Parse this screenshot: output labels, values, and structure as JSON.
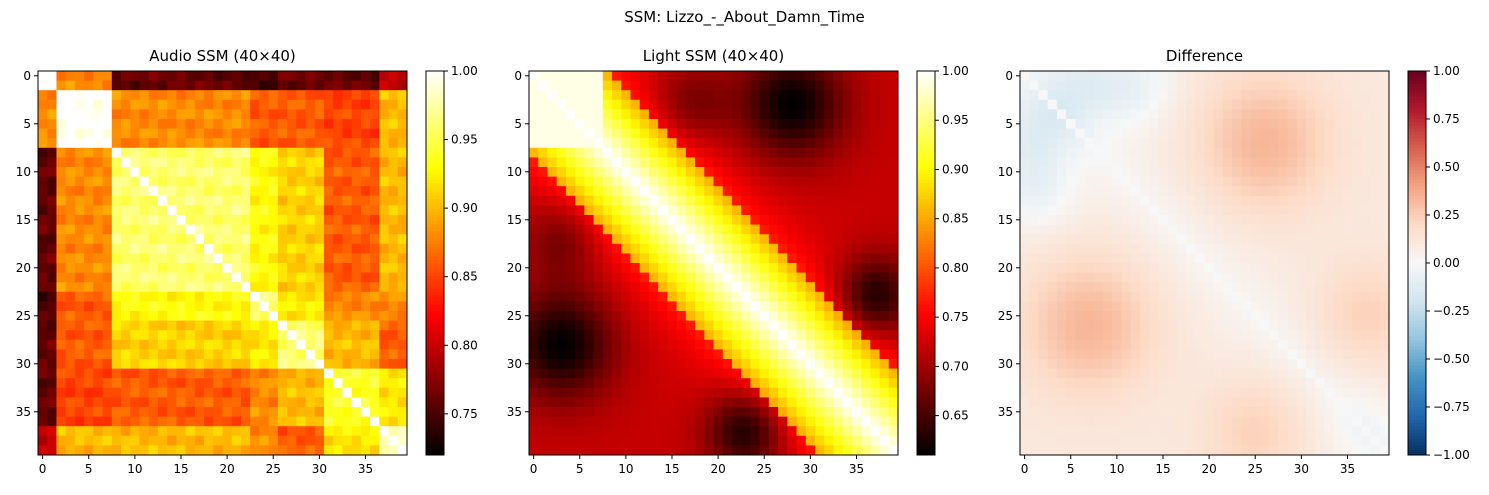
{
  "figure": {
    "suptitle": "SSM: Lizzo_-_About_Damn_Time"
  },
  "chart_data": [
    {
      "type": "heatmap",
      "title": "Audio SSM (40×40)",
      "size": 40,
      "colormap": "hot",
      "xticks": [
        0,
        5,
        10,
        15,
        20,
        25,
        30,
        35
      ],
      "yticks": [
        0,
        5,
        10,
        15,
        20,
        25,
        30,
        35
      ],
      "colorbar": {
        "range": [
          0.72,
          1.0
        ],
        "ticks": [
          0.75,
          0.8,
          0.85,
          0.9,
          0.95,
          1.0
        ],
        "tick_labels": [
          "0.75",
          "0.80",
          "0.85",
          "0.90",
          "0.95",
          "1.00"
        ]
      },
      "block_boundaries": [
        0,
        2,
        8,
        23,
        26,
        31,
        37,
        40
      ],
      "block_values": [
        [
          1.0,
          0.88,
          0.76,
          0.75,
          0.76,
          0.76,
          0.8
        ],
        [
          0.88,
          1.0,
          0.88,
          0.86,
          0.86,
          0.85,
          0.9
        ],
        [
          0.76,
          0.88,
          0.96,
          0.93,
          0.91,
          0.86,
          0.9
        ],
        [
          0.75,
          0.86,
          0.93,
          0.96,
          0.92,
          0.88,
          0.88
        ],
        [
          0.76,
          0.86,
          0.91,
          0.92,
          0.96,
          0.9,
          0.86
        ],
        [
          0.76,
          0.85,
          0.86,
          0.88,
          0.9,
          0.94,
          0.92
        ],
        [
          0.8,
          0.9,
          0.9,
          0.88,
          0.86,
          0.92,
          0.98
        ]
      ]
    },
    {
      "type": "heatmap",
      "title": "Light SSM (40×40)",
      "size": 40,
      "colormap": "hot",
      "xticks": [
        0,
        5,
        10,
        15,
        20,
        25,
        30,
        35
      ],
      "yticks": [
        0,
        5,
        10,
        15,
        20,
        25,
        30,
        35
      ],
      "colorbar": {
        "range": [
          0.61,
          1.0
        ],
        "ticks": [
          0.65,
          0.7,
          0.75,
          0.8,
          0.85,
          0.9,
          0.95,
          1.0
        ],
        "tick_labels": [
          "0.65",
          "0.70",
          "0.75",
          "0.80",
          "0.85",
          "0.90",
          "0.95",
          "1.00"
        ]
      },
      "band_diagonal": {
        "width": 8,
        "edge": 0.86
      },
      "anchors": [
        {
          "x": 28,
          "y": 3,
          "value": 0.61,
          "spread": 4
        },
        {
          "x": 3,
          "y": 28,
          "value": 0.61,
          "spread": 4
        },
        {
          "x": 23,
          "y": 37,
          "value": 0.62,
          "spread": 3
        },
        {
          "x": 37,
          "y": 23,
          "value": 0.62,
          "spread": 3
        },
        {
          "x": 17,
          "y": 3,
          "value": 0.67,
          "spread": 3
        },
        {
          "x": 3,
          "y": 17,
          "value": 0.67,
          "spread": 3
        }
      ],
      "base_offdiag": 0.72
    },
    {
      "type": "heatmap",
      "title": "Difference",
      "size": 40,
      "colormap": "RdBu_r",
      "xticks": [
        0,
        5,
        10,
        15,
        20,
        25,
        30,
        35
      ],
      "yticks": [
        0,
        5,
        10,
        15,
        20,
        25,
        30,
        35
      ],
      "colorbar": {
        "range": [
          -1.0,
          1.0
        ],
        "ticks": [
          -1.0,
          -0.75,
          -0.5,
          -0.25,
          0.0,
          0.25,
          0.5,
          0.75,
          1.0
        ],
        "tick_labels": [
          "−1.00",
          "−0.75",
          "−0.50",
          "−0.25",
          "0.00",
          "0.25",
          "0.50",
          "0.75",
          "1.00"
        ]
      },
      "anchors": [
        {
          "x": 26,
          "y": 7,
          "value": 0.24,
          "spread": 5
        },
        {
          "x": 7,
          "y": 26,
          "value": 0.24,
          "spread": 5
        },
        {
          "x": 12,
          "y": 1,
          "value": -0.15,
          "spread": 3
        },
        {
          "x": 1,
          "y": 12,
          "value": -0.15,
          "spread": 3
        },
        {
          "x": 1,
          "y": 6,
          "value": -0.17,
          "spread": 3
        },
        {
          "x": 6,
          "y": 1,
          "value": -0.17,
          "spread": 3
        },
        {
          "x": 25,
          "y": 37,
          "value": 0.14,
          "spread": 4
        },
        {
          "x": 37,
          "y": 25,
          "value": 0.14,
          "spread": 4
        },
        {
          "x": 37,
          "y": 37,
          "value": -0.06,
          "spread": 3
        }
      ],
      "base": 0.1
    }
  ]
}
